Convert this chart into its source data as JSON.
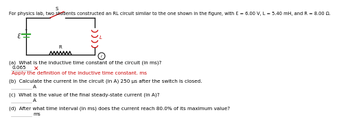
{
  "title": "For physics lab, two students constructed an RL circuit similar to the one shown in the figure, with Ɛ = 6.00 V, L = 5.40 mH, and R = 8.00 Ω.",
  "title_color": "#000000",
  "bg_color": "#ffffff",
  "question_a": "(a)  What is the inductive time constant of the circuit (in ms)?",
  "answer_a": "0.065",
  "answer_a_color": "#000000",
  "wrong_mark_color": "#cc0000",
  "hint_a": "Apply the definition of the inductive time constant.",
  "hint_a_suffix": " ms",
  "hint_a_color": "#cc0000",
  "question_b": "(b)  Calculate the current in the circuit (in A) 250 µs after the switch is closed.",
  "answer_b_label": "A",
  "question_c": "(c)  What is the value of the final steady-state current (in A)?",
  "answer_c_label": "A",
  "question_d": "(d)  After what time interval (in ms) does the current reach 80.0% of its maximum value?",
  "answer_d_label": "ms",
  "circuit_color": "#000000",
  "switch_color": "#cc0000",
  "inductor_color": "#cc0000",
  "resistor_color": "#000000",
  "battery_color": "#33aa33",
  "label_S": "S",
  "label_R": "R",
  "label_L": "L",
  "label_eps": "Ɛ",
  "fontsize_title": 4.8,
  "fontsize_q": 5.2,
  "fontsize_circuit": 5.0
}
